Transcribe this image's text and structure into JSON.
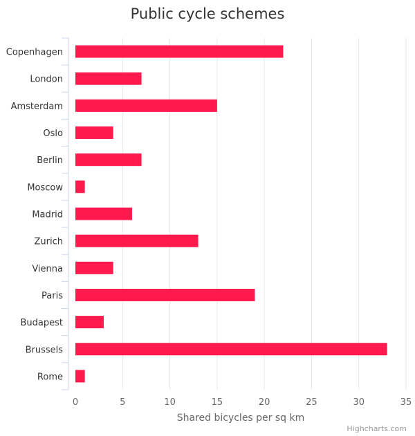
{
  "chart_data": {
    "type": "bar",
    "orientation": "horizontal",
    "title": "Public cycle schemes",
    "xlabel": "Shared bicycles per sq km",
    "categories": [
      "Copenhagen",
      "London",
      "Amsterdam",
      "Oslo",
      "Berlin",
      "Moscow",
      "Madrid",
      "Zurich",
      "Vienna",
      "Paris",
      "Budapest",
      "Brussels",
      "Rome"
    ],
    "series": [
      {
        "values": [
          22,
          7,
          15,
          4,
          7,
          1,
          6,
          13,
          4,
          19,
          3,
          33,
          1
        ]
      }
    ],
    "xlim": [
      0,
      35
    ],
    "ticks": [
      0,
      5,
      10,
      15,
      20,
      25,
      30,
      35
    ],
    "grid": true,
    "bar_color": "#ff1a4d"
  },
  "credits": "Highcharts.com"
}
